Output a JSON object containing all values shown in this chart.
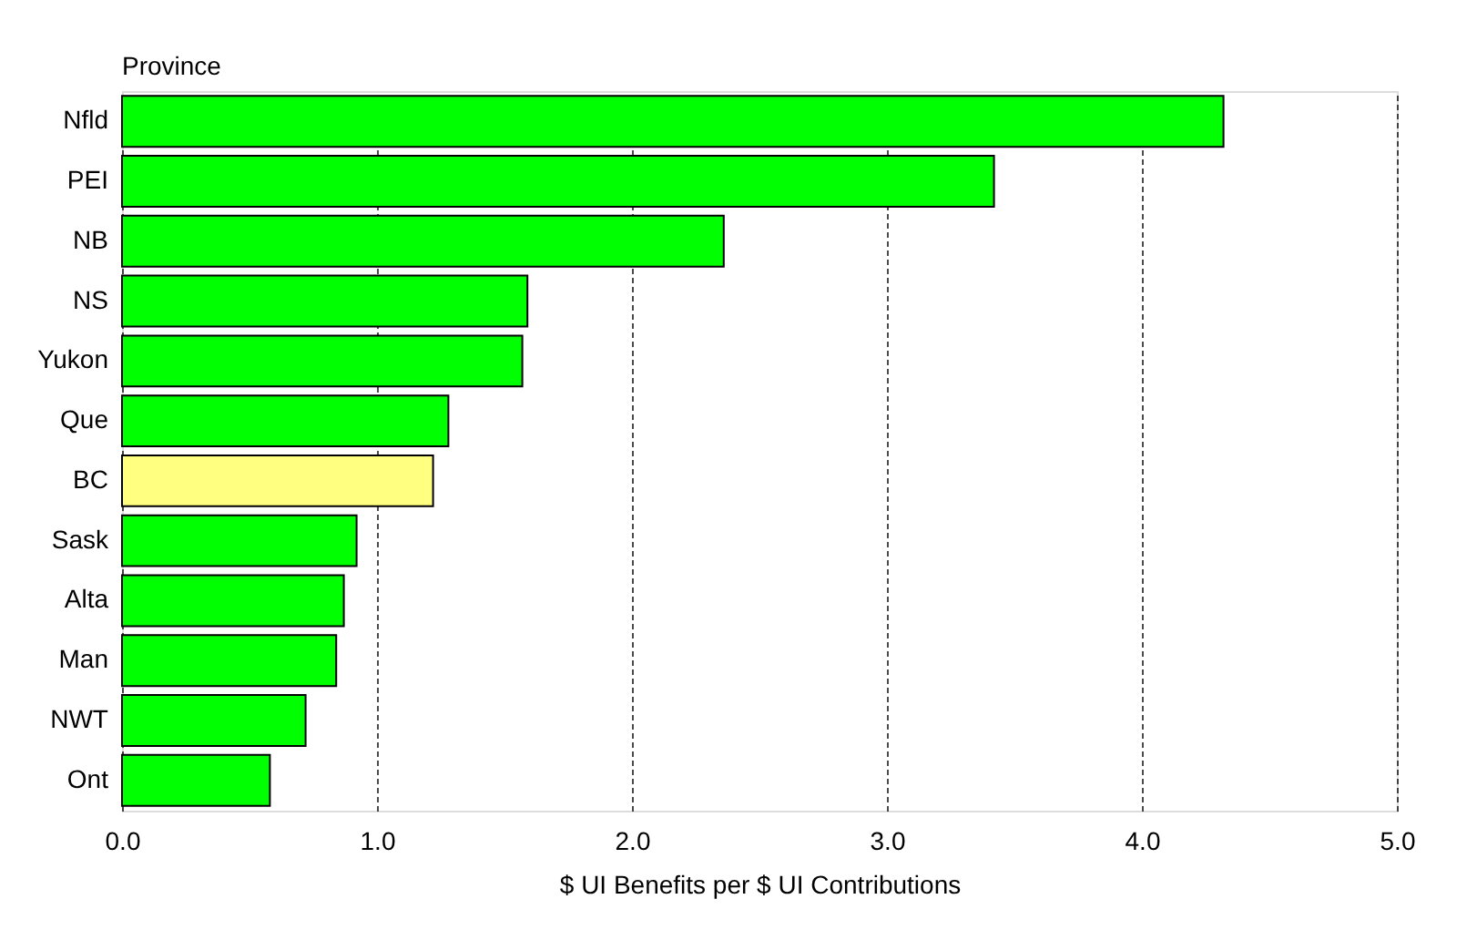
{
  "chart_data": {
    "type": "bar",
    "orientation": "horizontal",
    "ylabel": "Province",
    "xlabel": "$ UI Benefits per $ UI Contributions",
    "categories": [
      "Nfld",
      "PEI",
      "NB",
      "NS",
      "Yukon",
      "Que",
      "BC",
      "Sask",
      "Alta",
      "Man",
      "NWT",
      "Ont"
    ],
    "values": [
      4.32,
      3.42,
      2.36,
      1.59,
      1.57,
      1.28,
      1.22,
      0.92,
      0.87,
      0.84,
      0.72,
      0.58
    ],
    "colors": [
      "#00ff00",
      "#00ff00",
      "#00ff00",
      "#00ff00",
      "#00ff00",
      "#00ff00",
      "#ffff80",
      "#00ff00",
      "#00ff00",
      "#00ff00",
      "#00ff00",
      "#00ff00"
    ],
    "xlim": [
      0,
      5
    ],
    "xticks": [
      {
        "value": 0,
        "label": "0.0"
      },
      {
        "value": 1,
        "label": "1.0"
      },
      {
        "value": 2,
        "label": "2.0"
      },
      {
        "value": 3,
        "label": "3.0"
      },
      {
        "value": 4,
        "label": "4.0"
      },
      {
        "value": 5,
        "label": "5.0"
      }
    ],
    "grid": "x",
    "line_style": "dashed"
  }
}
